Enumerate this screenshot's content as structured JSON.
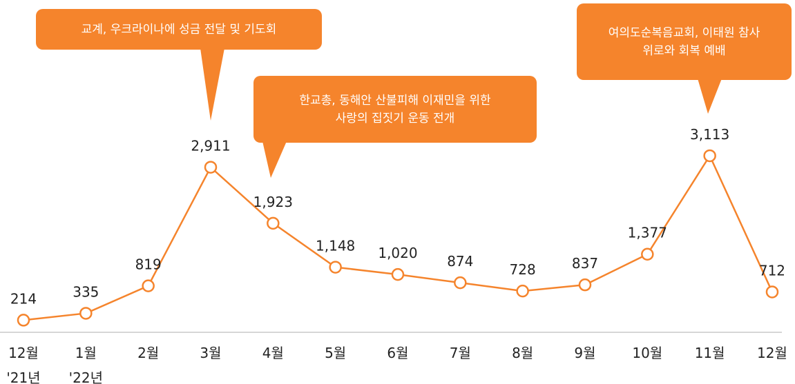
{
  "chart_data": {
    "type": "line",
    "categories": [
      "12월\n'21년",
      "1월\n'22년",
      "2월",
      "3월",
      "4월",
      "5월",
      "6월",
      "7월",
      "8월",
      "9월",
      "10월",
      "11월",
      "12월"
    ],
    "series": [
      {
        "name": null,
        "color": "#f5842c",
        "values": [
          214,
          335,
          819,
          2911,
          1923,
          1148,
          1020,
          874,
          728,
          837,
          1377,
          3113,
          712
        ],
        "value_labels": [
          "214",
          "335",
          "819",
          "2,911",
          "1,923",
          "1,148",
          "1,020",
          "874",
          "728",
          "837",
          "1,377",
          "3,113",
          "712"
        ]
      }
    ],
    "ylim": [
      0,
      4000
    ],
    "annotations": [
      {
        "text": "교계, 우크라이나에 성금 전달 및 기도회"
      },
      {
        "text": "한교총, 동해안 산불피해 이재민을 위한\n사랑의 집짓기 운동 전개"
      },
      {
        "text": "여의도순복음교회, 이태원 참사\n위로와 회복 예배"
      }
    ]
  }
}
